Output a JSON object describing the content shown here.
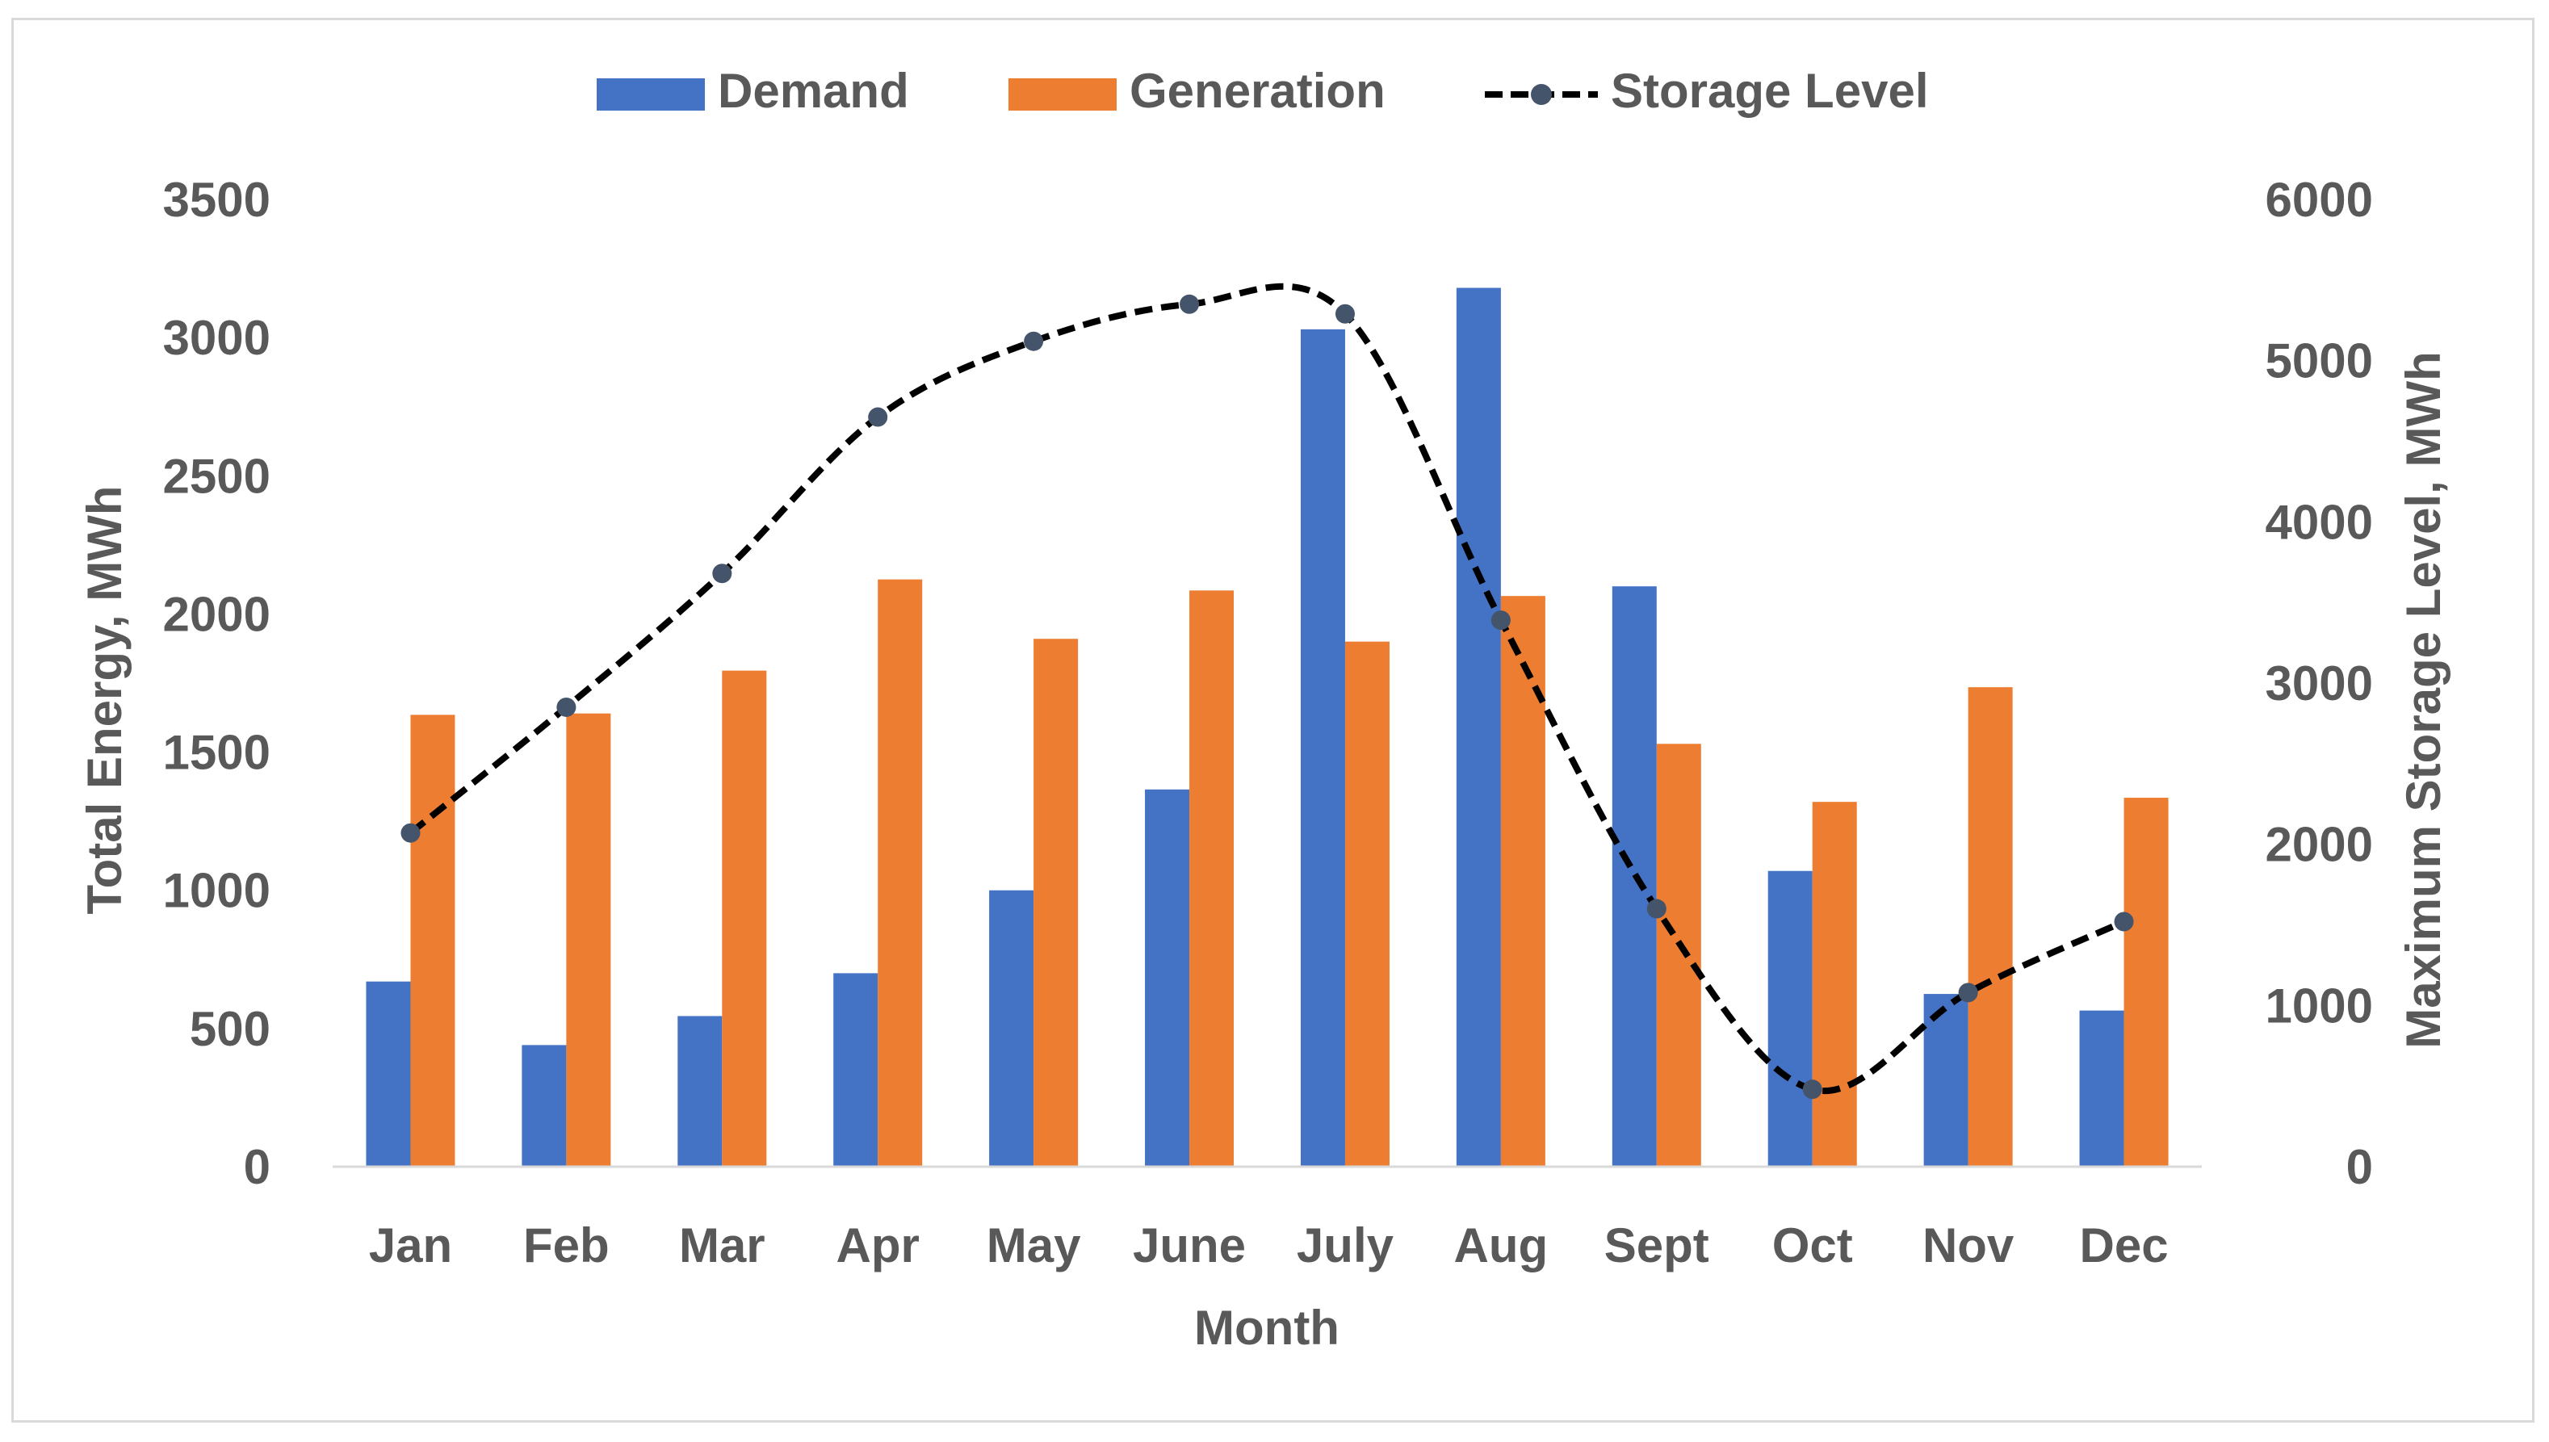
{
  "chart_data": {
    "type": "bar",
    "title": "",
    "xlabel": "Month",
    "ylabel": "Total Energy, MWh",
    "y2label": "Maximum Storage Level, MWh",
    "ylim": [
      0,
      3500
    ],
    "y2lim": [
      0,
      6000
    ],
    "yticks": [
      0,
      500,
      1000,
      1500,
      2000,
      2500,
      3000,
      3500
    ],
    "y2ticks": [
      0,
      1000,
      2000,
      3000,
      4000,
      5000,
      6000
    ],
    "grid": false,
    "legend": "top-center",
    "categories": [
      "Jan",
      "Feb",
      "Mar",
      "Apr",
      "May",
      "June",
      "July",
      "Aug",
      "Sept",
      "Oct",
      "Nov",
      "Dec"
    ],
    "series": [
      {
        "name": "Demand",
        "type": "bar",
        "axis": "left",
        "color": "#4472c4",
        "values": [
          670,
          440,
          545,
          700,
          1000,
          1365,
          3030,
          3180,
          2100,
          1070,
          625,
          565
        ]
      },
      {
        "name": "Generation",
        "type": "bar",
        "axis": "left",
        "color": "#ed7d31",
        "values": [
          1635,
          1640,
          1795,
          2125,
          1910,
          2085,
          1900,
          2065,
          1530,
          1320,
          1735,
          1335
        ]
      },
      {
        "name": "Storage Level",
        "type": "line",
        "axis": "right",
        "color": "#000000",
        "marker_color": "#44546a",
        "line_style": "dashed",
        "smooth": true,
        "values": [
          2070,
          2850,
          3680,
          4650,
          5120,
          5350,
          5290,
          3390,
          1600,
          480,
          1080,
          1520
        ]
      }
    ]
  }
}
